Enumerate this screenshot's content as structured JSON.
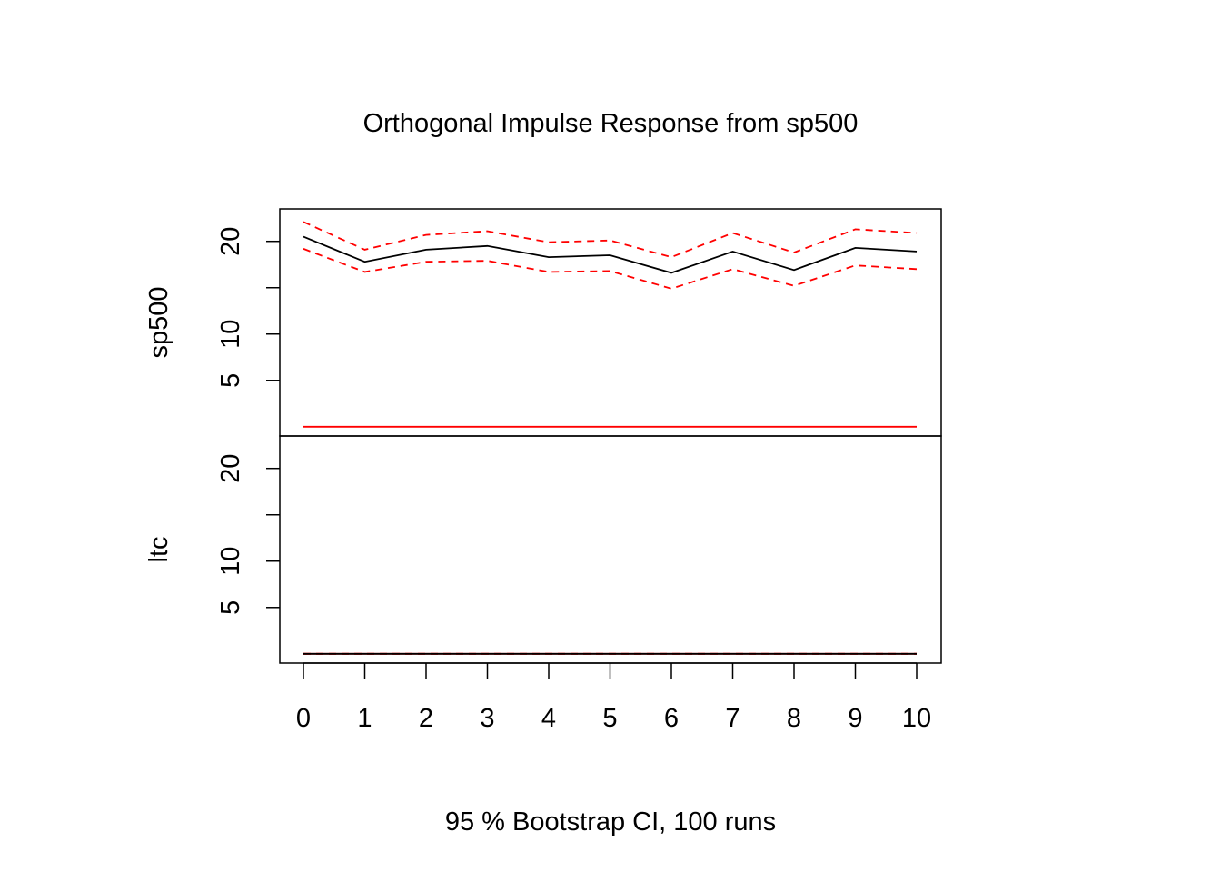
{
  "chart_data": {
    "type": "line",
    "title": "Orthogonal Impulse Response from sp500",
    "xlabel": "95 % Bootstrap CI,  100 runs",
    "x": [
      0,
      1,
      2,
      3,
      4,
      5,
      6,
      7,
      8,
      9,
      10
    ],
    "x_ticks": [
      "0",
      "1",
      "2",
      "3",
      "4",
      "5",
      "6",
      "7",
      "8",
      "9",
      "10"
    ],
    "colors": {
      "irf": "#000000",
      "ci": "#ff0000",
      "zero": "#ff0000",
      "frame": "#000000"
    },
    "panels": [
      {
        "ylabel": "sp500",
        "ylim": [
          -1,
          23.5
        ],
        "y_ticks": [
          5,
          10,
          15,
          20
        ],
        "y_tick_labels": [
          "5",
          "10",
          "",
          "20"
        ],
        "series": [
          {
            "role": "irf",
            "style": "solid",
            "values": [
              20.5,
              17.8,
              19.1,
              19.5,
              18.3,
              18.5,
              16.6,
              18.9,
              16.9,
              19.3,
              18.9
            ]
          },
          {
            "role": "ci_upper",
            "style": "dashed",
            "values": [
              22.1,
              19.1,
              20.7,
              21.1,
              19.9,
              20.1,
              18.3,
              20.9,
              18.8,
              21.3,
              20.9
            ]
          },
          {
            "role": "ci_lower",
            "style": "dashed",
            "values": [
              19.2,
              16.7,
              17.8,
              17.9,
              16.7,
              16.8,
              14.9,
              17.0,
              15.2,
              17.4,
              17.0
            ]
          },
          {
            "role": "zero",
            "style": "solid",
            "values": [
              0,
              0,
              0,
              0,
              0,
              0,
              0,
              0,
              0,
              0,
              0
            ]
          }
        ]
      },
      {
        "ylabel": "ltc",
        "ylim": [
          -1,
          23.5
        ],
        "y_ticks": [
          5,
          10,
          15,
          20
        ],
        "y_tick_labels": [
          "5",
          "10",
          "",
          "20"
        ],
        "series": [
          {
            "role": "irf",
            "style": "solid",
            "values": [
              0,
              0,
              0,
              0,
              0,
              0,
              0,
              0,
              0,
              0,
              0
            ]
          },
          {
            "role": "ci_upper",
            "style": "dashed",
            "values": [
              0,
              0,
              0,
              0,
              0,
              0,
              0,
              0,
              0,
              0,
              0
            ]
          },
          {
            "role": "ci_lower",
            "style": "dashed",
            "values": [
              0,
              0,
              0,
              0,
              0,
              0,
              0,
              0,
              0,
              0,
              0
            ]
          },
          {
            "role": "zero",
            "style": "solid",
            "values": [
              0,
              0,
              0,
              0,
              0,
              0,
              0,
              0,
              0,
              0,
              0
            ]
          }
        ]
      }
    ]
  }
}
